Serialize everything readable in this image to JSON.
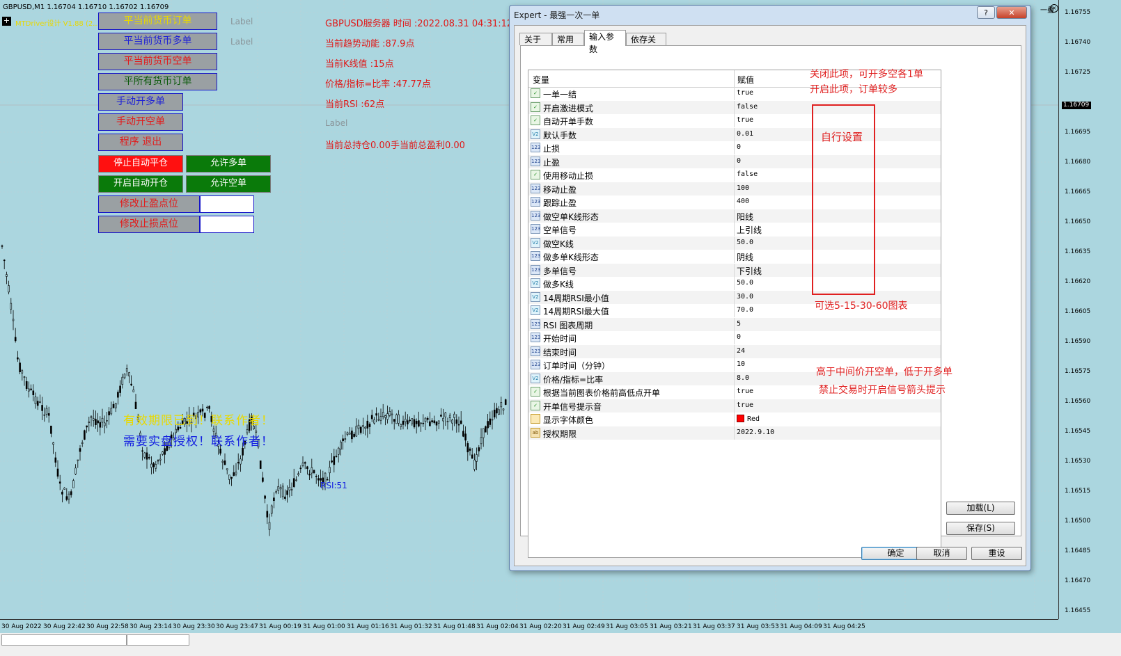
{
  "chart": {
    "symbol_header": "GBPUSD,M1  1.16704 1.16710 1.16702 1.16709",
    "ea_name": "MTDriver设计  V1.88 (2...",
    "server_line": "GBPUSD服务器   时间 :2022.08.31 04:31:12",
    "trend_line": "当前趋势动能 :87.9点",
    "kline_line": "当前K线值 :15点",
    "ratio_line": "价格/指标=比率 :47.77点",
    "rsi_line": "当前RSI :62点",
    "label_gray3": "Label",
    "position_line": "当前总持仓0.00手当前总盈利0.00",
    "label_gray1": "Label",
    "label_gray2": "Label",
    "warn_yellow": "有效期限已到！联系作者！",
    "warn_blue": "需要实盘授权！联系作者！",
    "rsi_label": "RSI:51",
    "current_price": "1.16709",
    "colors": {
      "background": "#abd6df",
      "candle": "#000000",
      "info_text": "#e01818"
    }
  },
  "panel_buttons": {
    "close_current_orders": "平当前货币订单",
    "close_current_buy": "平当前货币多单",
    "close_current_sell": "平当前货币空单",
    "close_all_orders": "平所有货币订单",
    "manual_buy": "手动开多单",
    "manual_sell": "手动开空单",
    "exit_program": "程序 退出",
    "stop_auto_close": "停止自动平仓",
    "allow_buy": "允许多单",
    "start_auto_open": "开启自动开仓",
    "allow_sell": "允许空单",
    "modify_tp": "修改止盈点位",
    "modify_sl": "修改止损点位",
    "tp_value": "",
    "sl_value": ""
  },
  "price_scale": [
    "1.16755",
    "1.16740",
    "1.16725",
    "1.16709",
    "1.16695",
    "1.16680",
    "1.16665",
    "1.16650",
    "1.16635",
    "1.16620",
    "1.16605",
    "1.16590",
    "1.16575",
    "1.16560",
    "1.16545",
    "1.16530",
    "1.16515",
    "1.16500",
    "1.16485",
    "1.16470",
    "1.16455"
  ],
  "time_axis": [
    "30 Aug 2022",
    "30 Aug 22:42",
    "30 Aug 22:58",
    "30 Aug 23:14",
    "30 Aug 23:30",
    "30 Aug 23:47",
    "31 Aug 00:19",
    "31 Aug 01:00",
    "31 Aug 01:16",
    "31 Aug 01:32",
    "31 Aug 01:48",
    "31 Aug 02:04",
    "31 Aug 02:20",
    "31 Aug 02:49",
    "31 Aug 03:05",
    "31 Aug 03:21",
    "31 Aug 03:37",
    "31 Aug 03:53",
    "31 Aug 04:09",
    "31 Aug 04:25"
  ],
  "dialog": {
    "title": "Expert - 最强一次一单",
    "help_btn": "?",
    "close_btn": "✕",
    "tabs": [
      "关于",
      "常用",
      "输入参数",
      "依存关系"
    ],
    "active_tab": "输入参数",
    "col_variable": "变量",
    "col_value": "赋值",
    "params": [
      {
        "type": "bool",
        "name": "一单一结",
        "value": "true"
      },
      {
        "type": "bool",
        "name": "开启激进模式",
        "value": "false"
      },
      {
        "type": "bool",
        "name": "自动开单手数",
        "value": "true"
      },
      {
        "type": "dbl",
        "name": "默认手数",
        "value": "0.01"
      },
      {
        "type": "int",
        "name": "止损",
        "value": "0"
      },
      {
        "type": "int",
        "name": "止盈",
        "value": "0"
      },
      {
        "type": "bool",
        "name": "使用移动止损",
        "value": "false"
      },
      {
        "type": "int",
        "name": "移动止盈",
        "value": "100"
      },
      {
        "type": "int",
        "name": "跟踪止盈",
        "value": "400"
      },
      {
        "type": "int",
        "name": "做空单K线形态",
        "value": "阳线"
      },
      {
        "type": "int",
        "name": "空单信号",
        "value": "上引线"
      },
      {
        "type": "dbl",
        "name": "做空K线",
        "value": "50.0"
      },
      {
        "type": "int",
        "name": "做多单K线形态",
        "value": "阴线"
      },
      {
        "type": "int",
        "name": "多单信号",
        "value": "下引线"
      },
      {
        "type": "dbl",
        "name": "做多K线",
        "value": "50.0"
      },
      {
        "type": "dbl",
        "name": "14周期RSI最小值",
        "value": "30.0"
      },
      {
        "type": "dbl",
        "name": "14周期RSI最大值",
        "value": "70.0"
      },
      {
        "type": "int",
        "name": "RSI 图表周期",
        "value": "5"
      },
      {
        "type": "int",
        "name": "开始时间",
        "value": "0"
      },
      {
        "type": "int",
        "name": "结束时间",
        "value": "24"
      },
      {
        "type": "int",
        "name": "订单时间（分钟）",
        "value": "10"
      },
      {
        "type": "dbl",
        "name": "价格/指标=比率",
        "value": "8.0"
      },
      {
        "type": "bool",
        "name": "根据当前图表价格前高低点开单",
        "value": "true"
      },
      {
        "type": "bool",
        "name": "开单信号提示音",
        "value": "true"
      },
      {
        "type": "col",
        "name": "显示字体颜色",
        "value": "Red"
      },
      {
        "type": "str",
        "name": "授权期限",
        "value": "2022.9.10"
      }
    ],
    "icon_labels": {
      "bool": "✓",
      "int": "123",
      "dbl": "V2",
      "col": "",
      "str": "ab"
    },
    "load_btn": "加载(L)",
    "save_btn": "保存(S)",
    "ok_btn": "确定",
    "cancel_btn": "取消",
    "reset_btn": "重设",
    "swatch_color": "#ff0000"
  },
  "annotations": {
    "note1": "关闭此项，可开多空各1单",
    "note2": "开启此项，订单较多",
    "note3": "自行设置",
    "note4": "可选5-15-30-60图表",
    "note5": "高于中间价开空单，低于开多单",
    "note6": "禁止交易时开启信号箭头提示"
  },
  "window_ctrl": "一叠"
}
